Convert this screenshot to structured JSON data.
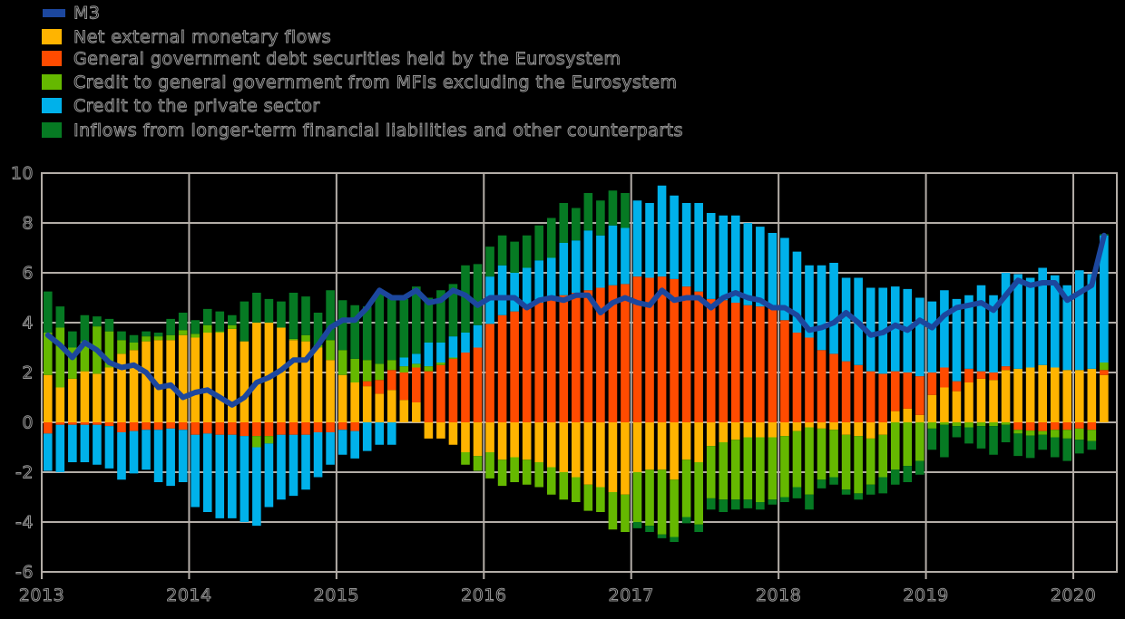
{
  "chart_data": {
    "type": "bar",
    "subtype": "stacked-bar-with-line",
    "title": "",
    "x_start": "2013-01",
    "x_end": "2020-03",
    "n_months": 87,
    "ylim": [
      -6,
      10
    ],
    "y_tick_labels": [
      "10",
      "8",
      "6",
      "4",
      "2",
      "0",
      "-2",
      "-4",
      "-6"
    ],
    "y_tick_values": [
      10,
      8,
      6,
      4,
      2,
      0,
      -2,
      -4,
      -6
    ],
    "x_tick_labels": [
      "2013",
      "2014",
      "2015",
      "2016",
      "2017",
      "2018",
      "2019",
      "2020"
    ],
    "grid": "on",
    "legend_position": "top-left",
    "background_color": "#000000",
    "gridline_color": "#b3ada7",
    "text_outline_color": "#979797",
    "line_series": {
      "key": "m3",
      "name": "M3",
      "color": "#1c479e",
      "values": [
        3.5,
        3.1,
        2.6,
        3.2,
        2.9,
        2.4,
        2.2,
        2.3,
        2.0,
        1.4,
        1.5,
        1.0,
        1.2,
        1.3,
        1.0,
        0.7,
        1.0,
        1.6,
        1.8,
        2.1,
        2.5,
        2.5,
        3.1,
        3.8,
        4.1,
        4.1,
        4.6,
        5.3,
        5.0,
        5.0,
        5.3,
        4.8,
        4.9,
        5.3,
        5.1,
        4.7,
        5.0,
        5.0,
        5.0,
        4.6,
        4.9,
        5.0,
        4.9,
        5.1,
        5.1,
        4.4,
        4.8,
        5.0,
        4.8,
        4.7,
        5.3,
        4.9,
        5.0,
        5.0,
        4.6,
        5.0,
        5.2,
        5.0,
        4.9,
        4.6,
        4.6,
        4.3,
        3.7,
        3.8,
        4.0,
        4.4,
        4.0,
        3.5,
        3.6,
        3.9,
        3.7,
        4.1,
        3.8,
        4.3,
        4.6,
        4.7,
        4.8,
        4.5,
        5.1,
        5.7,
        5.5,
        5.6,
        5.6,
        4.9,
        5.2,
        5.5,
        7.5
      ]
    },
    "bar_series": [
      {
        "key": "net-external-flows",
        "name": "Net external monetary flows",
        "color": "#ffb400",
        "values": [
          1.9,
          1.4,
          1.75,
          2.05,
          1.95,
          2.2,
          2.75,
          2.9,
          3.25,
          3.3,
          3.3,
          3.5,
          3.4,
          3.6,
          3.6,
          3.75,
          3.25,
          4.0,
          4.0,
          3.8,
          3.3,
          3.25,
          3.0,
          2.5,
          1.9,
          1.6,
          1.45,
          1.15,
          1.3,
          0.9,
          0.8,
          -0.65,
          -0.65,
          -0.9,
          -1.2,
          -1.35,
          -1.2,
          -1.5,
          -1.4,
          -1.5,
          -1.6,
          -1.8,
          -2.0,
          -2.2,
          -2.5,
          -2.6,
          -2.8,
          -2.9,
          -2.0,
          -1.9,
          -1.9,
          -2.3,
          -1.5,
          -1.6,
          -0.95,
          -0.8,
          -0.7,
          -0.6,
          -0.6,
          -0.6,
          -0.55,
          -0.35,
          -0.2,
          -0.25,
          -0.3,
          -0.5,
          -0.55,
          -0.65,
          -0.5,
          0.45,
          0.55,
          0.3,
          1.1,
          1.4,
          1.25,
          1.6,
          1.75,
          1.7,
          2.1,
          2.15,
          2.2,
          2.3,
          2.2,
          2.1,
          2.1,
          2.15,
          1.9
        ]
      },
      {
        "key": "gov-debt-eurosystem",
        "name": "General government debt securities held by the Eurosystem",
        "color": "#ff4b00",
        "values": [
          -0.45,
          -0.1,
          -0.1,
          -0.1,
          -0.1,
          -0.15,
          -0.4,
          -0.35,
          -0.3,
          -0.3,
          -0.25,
          -0.3,
          -0.5,
          -0.45,
          -0.5,
          -0.5,
          -0.55,
          -0.55,
          -0.55,
          -0.5,
          -0.5,
          -0.5,
          -0.4,
          -0.4,
          -0.3,
          -0.35,
          0.2,
          0.55,
          0.8,
          1.1,
          1.4,
          2.05,
          2.3,
          2.55,
          2.8,
          3.0,
          3.95,
          4.3,
          4.45,
          4.65,
          4.8,
          4.9,
          5.1,
          5.2,
          5.3,
          5.4,
          5.5,
          5.55,
          5.85,
          5.8,
          5.85,
          5.75,
          5.45,
          5.25,
          4.95,
          4.9,
          4.8,
          4.7,
          4.65,
          4.6,
          4.1,
          3.6,
          3.4,
          2.9,
          2.75,
          2.45,
          2.3,
          2.05,
          1.95,
          1.6,
          1.45,
          1.55,
          0.9,
          0.8,
          0.4,
          0.55,
          0.3,
          0.3,
          0.15,
          -0.3,
          -0.33,
          -0.35,
          -0.3,
          -0.3,
          -0.25,
          -0.3,
          0.2
        ]
      },
      {
        "key": "credit-gov-mfis",
        "name": "Credit to general government from MFIs excluding the Eurosystem",
        "color": "#65b800",
        "values": [
          1.7,
          2.4,
          1.25,
          1.2,
          1.9,
          1.45,
          0.55,
          0.3,
          0.2,
          0.15,
          0.2,
          0.2,
          0.15,
          0.3,
          0.05,
          0.15,
          0.0,
          -0.45,
          -0.3,
          0.0,
          0.05,
          0.25,
          0.1,
          0.8,
          1.0,
          0.95,
          0.85,
          0.65,
          0.4,
          0.25,
          0.15,
          0.2,
          0.1,
          0.05,
          -0.5,
          -0.6,
          -1.05,
          -1.05,
          -1.0,
          -1.0,
          -1.0,
          -1.1,
          -1.1,
          -1.0,
          -1.05,
          -1.0,
          -1.5,
          -1.5,
          -2.0,
          -2.25,
          -2.6,
          -2.3,
          -2.3,
          -2.5,
          -2.1,
          -2.3,
          -2.4,
          -2.5,
          -2.6,
          -2.5,
          -2.45,
          -2.25,
          -2.7,
          -2.05,
          -1.9,
          -2.2,
          -2.3,
          -1.85,
          -1.7,
          -1.9,
          -1.75,
          -1.55,
          -0.25,
          -0.1,
          -0.15,
          -0.2,
          -0.15,
          -0.15,
          -0.1,
          -0.15,
          -0.2,
          -0.15,
          -0.3,
          -0.35,
          -0.45,
          -0.45,
          0.3
        ]
      },
      {
        "key": "credit-private-sector",
        "name": "Credit to the private sector",
        "color": "#00b1ea",
        "values": [
          -1.5,
          -1.9,
          -1.5,
          -1.5,
          -1.6,
          -1.7,
          -1.9,
          -1.7,
          -1.6,
          -2.1,
          -2.3,
          -2.1,
          -2.9,
          -3.15,
          -3.35,
          -3.35,
          -3.45,
          -3.15,
          -2.55,
          -2.6,
          -2.45,
          -2.2,
          -1.8,
          -1.3,
          -1.0,
          -1.1,
          -1.15,
          -0.9,
          -0.9,
          0.35,
          0.4,
          0.95,
          0.8,
          0.85,
          0.8,
          0.9,
          1.9,
          2.0,
          1.55,
          1.55,
          1.7,
          1.7,
          2.1,
          2.1,
          2.4,
          2.1,
          2.4,
          2.25,
          3.05,
          3.0,
          3.65,
          3.35,
          3.35,
          3.55,
          3.45,
          3.4,
          3.5,
          3.3,
          3.2,
          3.0,
          3.3,
          3.25,
          2.9,
          3.4,
          3.65,
          3.35,
          3.5,
          3.35,
          3.45,
          3.4,
          3.35,
          3.15,
          2.85,
          3.1,
          3.3,
          2.95,
          3.45,
          3.1,
          3.75,
          3.8,
          3.6,
          3.9,
          3.7,
          3.4,
          4.0,
          3.8,
          5.1
        ]
      },
      {
        "key": "longer-term-liabilities",
        "name": "Inflows from longer-term financial liabilities and other counterparts",
        "color": "#067a23",
        "values": [
          1.65,
          0.85,
          0.65,
          1.05,
          0.4,
          0.5,
          0.35,
          0.3,
          0.2,
          0.15,
          0.65,
          0.7,
          0.55,
          0.65,
          0.8,
          0.4,
          1.6,
          1.2,
          0.95,
          1.05,
          1.85,
          1.55,
          1.3,
          2.0,
          2.0,
          2.15,
          2.15,
          2.9,
          2.5,
          2.35,
          2.7,
          1.8,
          2.1,
          2.1,
          2.7,
          2.45,
          1.2,
          1.2,
          1.25,
          1.3,
          1.4,
          1.6,
          1.6,
          1.3,
          1.5,
          1.4,
          1.4,
          1.4,
          -0.25,
          -0.25,
          -0.15,
          -0.2,
          -0.25,
          -0.3,
          -0.45,
          -0.5,
          -0.4,
          -0.35,
          -0.3,
          -0.2,
          -0.2,
          -0.45,
          -0.6,
          -0.35,
          -0.3,
          -0.2,
          -0.25,
          -0.4,
          -0.65,
          -0.6,
          -0.65,
          -0.55,
          -0.85,
          -1.3,
          -0.45,
          -0.65,
          -0.9,
          -1.15,
          -0.7,
          -0.9,
          -0.9,
          -0.6,
          -0.8,
          -0.9,
          -0.55,
          -0.35,
          0.05
        ]
      }
    ]
  },
  "legend": {
    "items": [
      {
        "label": "M3"
      },
      {
        "label": "Net external monetary flows"
      },
      {
        "label": "General government debt securities held by the Eurosystem"
      },
      {
        "label": "Credit to general government from MFIs excluding the Eurosystem"
      },
      {
        "label": "Credit to the private sector"
      },
      {
        "label": "Inflows from longer-term financial liabilities and other counterparts"
      }
    ]
  }
}
